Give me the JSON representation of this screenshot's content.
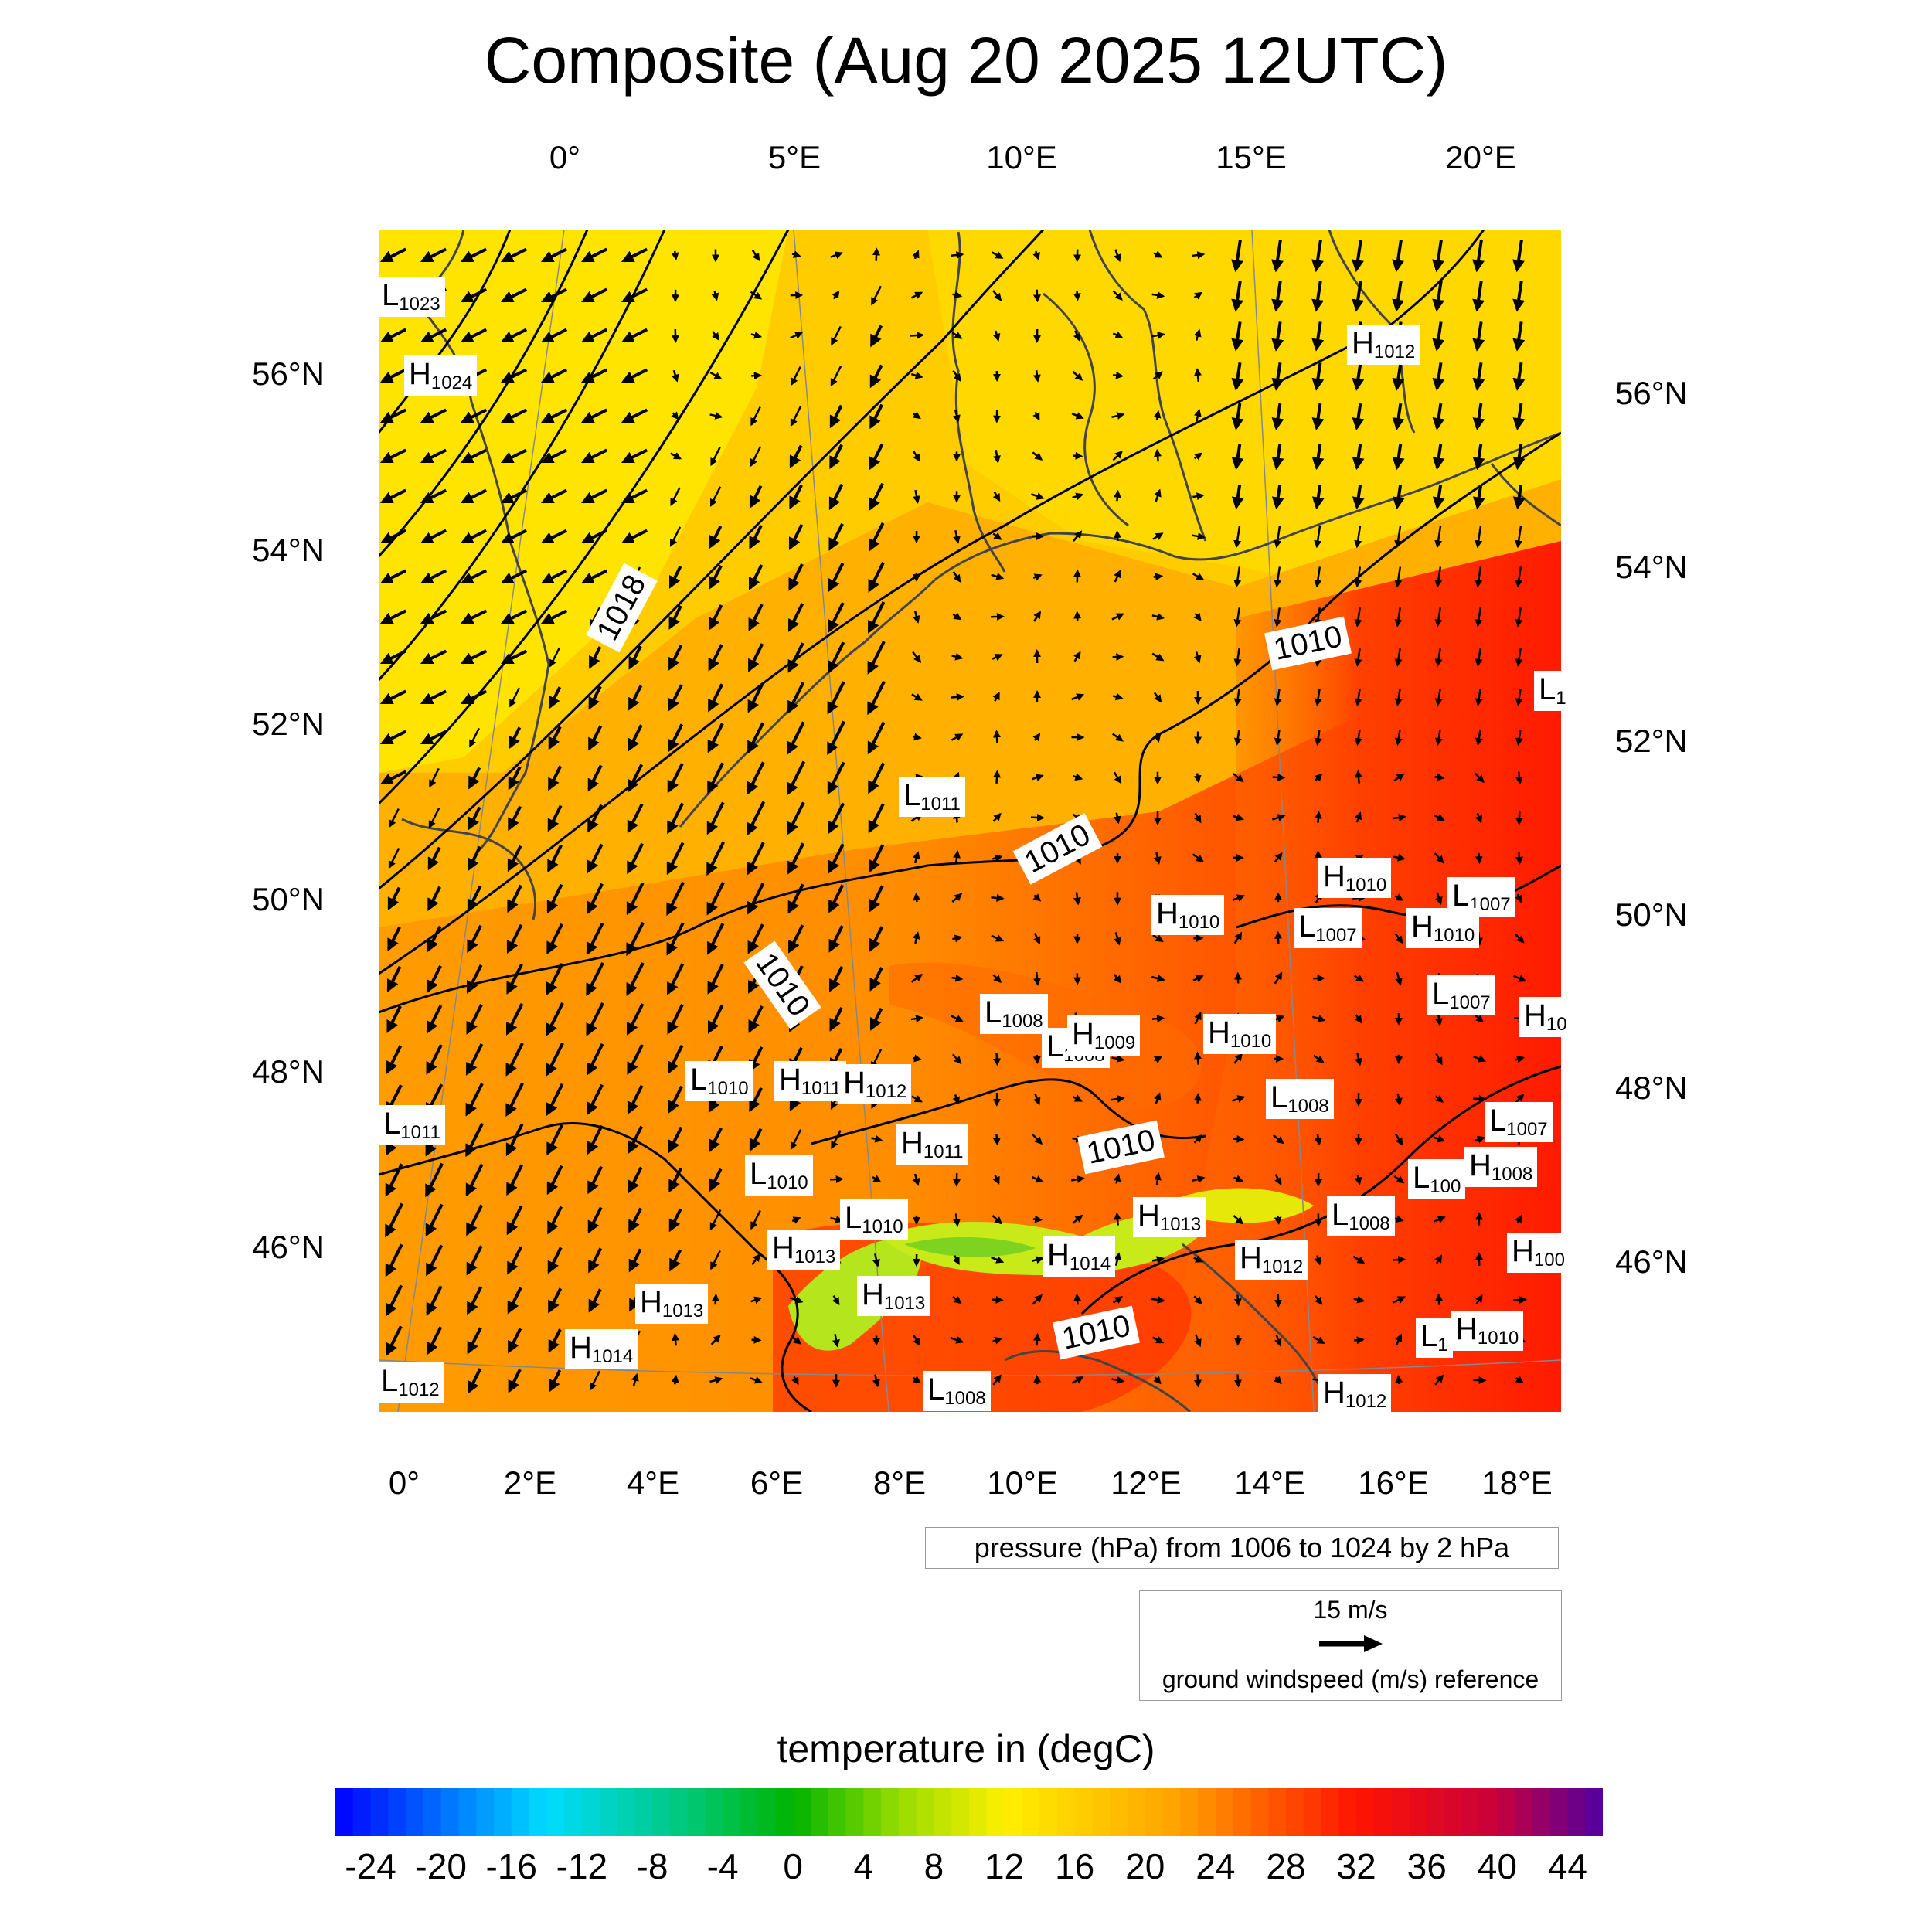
{
  "title": "Composite (Aug 20 2025 12UTC)",
  "top_lon_labels": [
    "0°",
    "5°E",
    "10°E",
    "15°E",
    "20°E"
  ],
  "bottom_lon_labels": [
    "0°",
    "2°E",
    "4°E",
    "6°E",
    "8°E",
    "10°E",
    "12°E",
    "14°E",
    "16°E",
    "18°E"
  ],
  "left_lat_labels": [
    "56°N",
    "54°N",
    "52°N",
    "50°N",
    "48°N",
    "46°N"
  ],
  "right_lat_labels": [
    "56°N",
    "54°N",
    "52°N",
    "50°N",
    "48°N",
    "46°N"
  ],
  "pressure_centers": [
    {
      "t": "L",
      "v": "1023"
    },
    {
      "t": "H",
      "v": "1024"
    },
    {
      "t": "H",
      "v": "1012"
    },
    {
      "t": "L",
      "v": "1"
    },
    {
      "t": "L",
      "v": "1011"
    },
    {
      "t": "H",
      "v": "1010"
    },
    {
      "t": "L",
      "v": "1007"
    },
    {
      "t": "H",
      "v": "1010"
    },
    {
      "t": "L",
      "v": "1007"
    },
    {
      "t": "H",
      "v": "1010"
    },
    {
      "t": "L",
      "v": "1007"
    },
    {
      "t": "L",
      "v": "1008"
    },
    {
      "t": "L",
      "v": "1008"
    },
    {
      "t": "H",
      "v": "1009"
    },
    {
      "t": "H",
      "v": "1010"
    },
    {
      "t": "H",
      "v": "10"
    },
    {
      "t": "L",
      "v": "1010"
    },
    {
      "t": "H",
      "v": "1011"
    },
    {
      "t": "H",
      "v": "1012"
    },
    {
      "t": "L",
      "v": "1008"
    },
    {
      "t": "L",
      "v": "1011"
    },
    {
      "t": "H",
      "v": "1011"
    },
    {
      "t": "L",
      "v": "1007"
    },
    {
      "t": "L",
      "v": "1010"
    },
    {
      "t": "L",
      "v": "100"
    },
    {
      "t": "H",
      "v": "1008"
    },
    {
      "t": "L",
      "v": "1010"
    },
    {
      "t": "H",
      "v": "1013"
    },
    {
      "t": "L",
      "v": "1008"
    },
    {
      "t": "H",
      "v": "1013"
    },
    {
      "t": "H",
      "v": "1014"
    },
    {
      "t": "H",
      "v": "1012"
    },
    {
      "t": "H",
      "v": "100"
    },
    {
      "t": "H",
      "v": "1013"
    },
    {
      "t": "H",
      "v": "1013"
    },
    {
      "t": "H",
      "v": "1014"
    },
    {
      "t": "L",
      "v": "1012"
    },
    {
      "t": "L",
      "v": "1008"
    },
    {
      "t": "H",
      "v": "1012"
    },
    {
      "t": "L",
      "v": "1"
    },
    {
      "t": "H",
      "v": "1010"
    }
  ],
  "isobar_labels": [
    "1018",
    "1010",
    "1010",
    "1010",
    "1010",
    "1010"
  ],
  "pressure_legend": "pressure (hPa) from 1006 to 1024 by 2 hPa",
  "wind_reference": {
    "speed": "15 m/s",
    "description": "ground windspeed (m/s) reference"
  },
  "colorbar": {
    "title": "temperature in (degC)",
    "ticks": [
      "-24",
      "-20",
      "-16",
      "-12",
      "-8",
      "-4",
      "0",
      "4",
      "8",
      "12",
      "16",
      "20",
      "24",
      "28",
      "32",
      "36",
      "40",
      "44"
    ],
    "min": -26,
    "max": 46
  },
  "colors": {
    "cold": "#0000ff",
    "warm": "#ffa500",
    "hot": "#ff1a00",
    "alpine": "#b5e61d"
  }
}
